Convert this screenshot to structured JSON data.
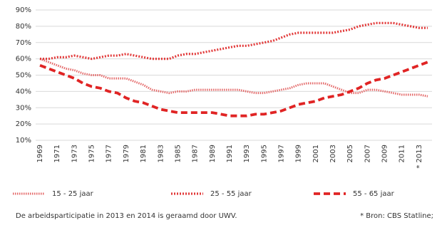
{
  "chart_data": {
    "type": "line",
    "categories": [
      "1969",
      null,
      "1971",
      null,
      "1973",
      null,
      "1975",
      null,
      "1977",
      null,
      "1979",
      null,
      "1981",
      null,
      "1983",
      null,
      "1985",
      null,
      "1987",
      null,
      "1989",
      null,
      "1991",
      null,
      "1993",
      null,
      "1995",
      null,
      "1997",
      null,
      "1999",
      null,
      "2001",
      null,
      "2003",
      null,
      "2005",
      null,
      "2007",
      null,
      "2009",
      null,
      "2011",
      null,
      "* 2013",
      null
    ],
    "series": [
      {
        "name": "15 - 25 jaar",
        "color": "#e46a6a",
        "style": "dotted",
        "values": [
          60,
          58,
          56,
          54,
          53,
          51,
          50,
          50,
          48,
          48,
          48,
          46,
          44,
          41,
          40,
          39,
          40,
          40,
          41,
          41,
          41,
          41,
          41,
          41,
          40,
          39,
          39,
          40,
          41,
          42,
          44,
          45,
          45,
          45,
          43,
          41,
          39,
          39,
          41,
          41,
          40,
          39,
          38,
          38,
          38,
          37
        ]
      },
      {
        "name": "25 - 55 jaar",
        "color": "#e23a3a",
        "style": "dots",
        "values": [
          60,
          60,
          61,
          61,
          62,
          61,
          60,
          61,
          62,
          62,
          63,
          62,
          61,
          60,
          60,
          60,
          62,
          63,
          63,
          64,
          65,
          66,
          67,
          68,
          68,
          69,
          70,
          71,
          73,
          75,
          76,
          76,
          76,
          76,
          76,
          77,
          78,
          80,
          81,
          82,
          82,
          82,
          81,
          80,
          79,
          79
        ]
      },
      {
        "name": "55 - 65 jaar",
        "color": "#e02424",
        "style": "dashed",
        "values": [
          56,
          54,
          52,
          50,
          48,
          45,
          43,
          42,
          40,
          39,
          36,
          34,
          33,
          31,
          29,
          28,
          27,
          27,
          27,
          27,
          27,
          26,
          25,
          25,
          25,
          26,
          26,
          27,
          28,
          30,
          32,
          33,
          34,
          36,
          37,
          38,
          40,
          42,
          45,
          47,
          48,
          50,
          52,
          54,
          56,
          58
        ]
      }
    ],
    "ylim": [
      10,
      90
    ],
    "yticks": [
      {
        "value": 10,
        "label": "10%"
      },
      {
        "value": 20,
        "label": "20%"
      },
      {
        "value": 30,
        "label": "30%"
      },
      {
        "value": 40,
        "label": "40%"
      },
      {
        "value": 50,
        "label": "50%"
      },
      {
        "value": 60,
        "label": "60%"
      },
      {
        "value": 70,
        "label": "70%"
      },
      {
        "value": 80,
        "label": "80%"
      },
      {
        "value": 90,
        "label": "90%"
      }
    ],
    "grid": true,
    "notes": [
      "De arbeidsparticipatie in 2013 en 2014 is geraamd door UWV.",
      "* Bron: CBS Statline;"
    ]
  }
}
